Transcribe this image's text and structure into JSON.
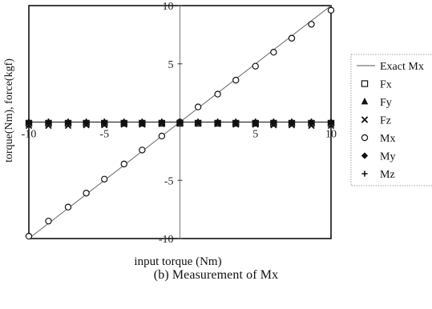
{
  "caption": "(b) Measurement of Mx",
  "chart_data": {
    "type": "scatter",
    "title": "",
    "xlabel": "input torque (Nm)",
    "ylabel": "torque(Nm), force(kgf)",
    "xlim": [
      -10,
      10
    ],
    "ylim": [
      -10,
      10
    ],
    "xticks": [
      -10,
      -5,
      0,
      5,
      10
    ],
    "yticks": [
      -10,
      -5,
      0,
      5,
      10
    ],
    "tick_labels": {
      "x": [
        "-10",
        "-5",
        "",
        "5",
        "10"
      ],
      "y": [
        "-10",
        "-5",
        "",
        "5",
        "10"
      ]
    },
    "grid": false,
    "legend_position": "right",
    "x": [
      -10,
      -8.7,
      -7.4,
      -6.2,
      -5,
      -3.7,
      -2.5,
      -1.2,
      0,
      1.2,
      2.5,
      3.7,
      5,
      6.2,
      7.4,
      8.7,
      10
    ],
    "series": [
      {
        "name": "Exact Mx",
        "marker": "line",
        "x": [
          -10,
          10
        ],
        "values": [
          -10,
          10
        ]
      },
      {
        "name": "Fx",
        "marker": "square",
        "values": [
          -0.1,
          -0.1,
          -0.1,
          -0.1,
          -0.1,
          -0.1,
          -0.1,
          -0.1,
          -0.1,
          -0.1,
          -0.1,
          -0.1,
          -0.1,
          -0.1,
          -0.1,
          -0.1,
          -0.1
        ]
      },
      {
        "name": "Fy",
        "marker": "triangle",
        "values": [
          -0.05,
          -0.05,
          -0.05,
          -0.05,
          -0.05,
          -0.05,
          -0.05,
          -0.05,
          -0.05,
          -0.05,
          -0.05,
          -0.05,
          -0.05,
          -0.05,
          -0.05,
          -0.05,
          -0.05
        ]
      },
      {
        "name": "Fz",
        "marker": "x",
        "values": [
          -0.3,
          -0.3,
          -0.3,
          -0.25,
          -0.25,
          -0.2,
          -0.2,
          -0.15,
          -0.1,
          -0.1,
          -0.15,
          -0.2,
          -0.2,
          -0.25,
          -0.25,
          -0.3,
          -0.3
        ]
      },
      {
        "name": "Mx",
        "marker": "circle",
        "values": [
          -9.8,
          -8.5,
          -7.3,
          -6.1,
          -4.9,
          -3.6,
          -2.4,
          -1.2,
          0,
          1.3,
          2.4,
          3.6,
          4.8,
          6.0,
          7.2,
          8.4,
          9.6
        ]
      },
      {
        "name": "My",
        "marker": "diamond",
        "values": [
          0,
          0,
          0,
          0,
          0,
          0,
          0,
          0,
          0,
          0,
          0,
          0,
          0,
          0,
          0,
          0,
          0
        ]
      },
      {
        "name": "Mz",
        "marker": "plus",
        "values": [
          0.05,
          0.05,
          0.05,
          0.05,
          0.05,
          0.05,
          0.05,
          0.05,
          0.05,
          0.05,
          0.05,
          0.05,
          0.05,
          0.05,
          0.05,
          0.05,
          0.05
        ]
      }
    ]
  }
}
